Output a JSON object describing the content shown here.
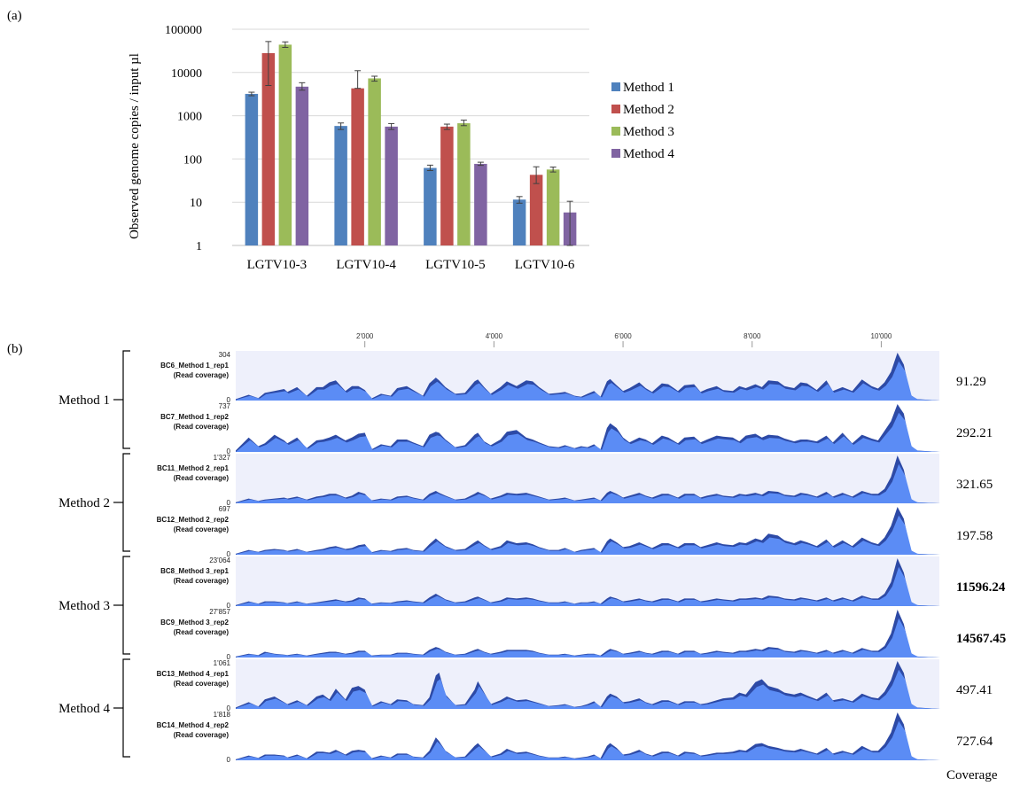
{
  "panel_a": {
    "label": "(a)",
    "chart_data": {
      "type": "bar",
      "ylabel": "Observed genome copies / input µl",
      "yscale": "log",
      "ylim": [
        1,
        100000
      ],
      "yticks": [
        "1",
        "10",
        "100",
        "1000",
        "10000",
        "100000"
      ],
      "categories": [
        "LGTV10-3",
        "LGTV10-4",
        "LGTV10-5",
        "LGTV10-6"
      ],
      "legend_position": "right",
      "grid": true,
      "series": [
        {
          "name": "Method 1",
          "color": "#4F81BD",
          "values": [
            3200,
            580,
            62,
            11.5
          ],
          "err_low": [
            2900,
            480,
            54,
            9.5
          ],
          "err_high": [
            3500,
            680,
            72,
            13.5
          ]
        },
        {
          "name": "Method 2",
          "color": "#C0504D",
          "values": [
            28000,
            4300,
            560,
            43
          ],
          "err_low": [
            5000,
            4300,
            480,
            27
          ],
          "err_high": [
            52000,
            11000,
            640,
            66
          ]
        },
        {
          "name": "Method 3",
          "color": "#9BBB59",
          "values": [
            44000,
            7300,
            670,
            57
          ],
          "err_low": [
            38000,
            6300,
            590,
            50
          ],
          "err_high": [
            51000,
            8200,
            790,
            65
          ]
        },
        {
          "name": "Method 4",
          "color": "#8064A2",
          "values": [
            4700,
            560,
            77,
            5.8
          ],
          "err_low": [
            3900,
            480,
            71,
            0.62
          ],
          "err_high": [
            5800,
            660,
            84,
            10.5
          ]
        }
      ]
    }
  },
  "panel_b": {
    "label": "(b)",
    "chart_data": {
      "type": "area",
      "x_ticks": [
        "2'000",
        "4'000",
        "6'000",
        "8'000",
        "10'000"
      ],
      "x_tick_values": [
        2000,
        4000,
        6000,
        8000,
        10000
      ],
      "x_range": [
        0,
        10900
      ],
      "coverage_label": "Coverage",
      "profile_x": [
        0,
        200,
        350,
        450,
        600,
        750,
        800,
        950,
        1100,
        1250,
        1350,
        1450,
        1550,
        1700,
        1800,
        1900,
        2000,
        2100,
        2250,
        2400,
        2500,
        2650,
        2750,
        2900,
        3000,
        3100,
        3150,
        3250,
        3400,
        3550,
        3700,
        3750,
        3850,
        3950,
        4100,
        4200,
        4350,
        4500,
        4600,
        4700,
        4850,
        5000,
        5100,
        5250,
        5350,
        5450,
        5550,
        5650,
        5750,
        5800,
        5900,
        6000,
        6100,
        6250,
        6350,
        6450,
        6600,
        6700,
        6850,
        6950,
        7100,
        7200,
        7300,
        7450,
        7550,
        7700,
        7800,
        7900,
        8050,
        8150,
        8250,
        8400,
        8500,
        8650,
        8750,
        8850,
        9000,
        9150,
        9250,
        9400,
        9550,
        9700,
        9850,
        9950,
        10050,
        10150,
        10250,
        10350,
        10450,
        10550,
        10900
      ],
      "tracks": [
        {
          "method": "Method 1",
          "label": "BC6_Method 1_rep1",
          "sublabel": "(Read coverage)",
          "ymax": "304",
          "ymin": "0",
          "coverage": "91.29",
          "bold": false,
          "profile": [
            0.03,
            0.12,
            0.05,
            0.16,
            0.2,
            0.24,
            0.18,
            0.28,
            0.1,
            0.28,
            0.28,
            0.38,
            0.42,
            0.2,
            0.3,
            0.3,
            0.22,
            0.04,
            0.14,
            0.1,
            0.26,
            0.3,
            0.22,
            0.1,
            0.36,
            0.48,
            0.42,
            0.28,
            0.14,
            0.16,
            0.4,
            0.44,
            0.28,
            0.14,
            0.28,
            0.4,
            0.3,
            0.42,
            0.4,
            0.28,
            0.14,
            0.16,
            0.18,
            0.1,
            0.08,
            0.14,
            0.2,
            0.08,
            0.4,
            0.45,
            0.32,
            0.2,
            0.26,
            0.38,
            0.26,
            0.18,
            0.36,
            0.34,
            0.2,
            0.32,
            0.34,
            0.18,
            0.24,
            0.3,
            0.22,
            0.2,
            0.3,
            0.26,
            0.34,
            0.28,
            0.42,
            0.4,
            0.3,
            0.26,
            0.38,
            0.36,
            0.22,
            0.42,
            0.2,
            0.28,
            0.2,
            0.44,
            0.3,
            0.25,
            0.38,
            0.6,
            1.0,
            0.75,
            0.12,
            0.03,
            0.0
          ]
        },
        {
          "method": "Method 1",
          "label": "BC7_Method 1_rep2",
          "sublabel": "(Read coverage)",
          "ymax": "737",
          "ymin": "0",
          "coverage": "292.21",
          "bold": false,
          "profile": [
            0.03,
            0.3,
            0.12,
            0.18,
            0.36,
            0.24,
            0.18,
            0.3,
            0.08,
            0.24,
            0.26,
            0.3,
            0.36,
            0.24,
            0.3,
            0.38,
            0.4,
            0.05,
            0.16,
            0.12,
            0.26,
            0.26,
            0.2,
            0.12,
            0.36,
            0.42,
            0.4,
            0.26,
            0.1,
            0.14,
            0.36,
            0.4,
            0.22,
            0.14,
            0.26,
            0.42,
            0.46,
            0.3,
            0.26,
            0.2,
            0.12,
            0.1,
            0.14,
            0.08,
            0.12,
            0.1,
            0.16,
            0.05,
            0.5,
            0.6,
            0.5,
            0.3,
            0.2,
            0.3,
            0.26,
            0.18,
            0.34,
            0.3,
            0.18,
            0.3,
            0.32,
            0.2,
            0.26,
            0.34,
            0.32,
            0.3,
            0.22,
            0.34,
            0.38,
            0.3,
            0.36,
            0.34,
            0.28,
            0.22,
            0.26,
            0.26,
            0.22,
            0.34,
            0.2,
            0.4,
            0.18,
            0.36,
            0.28,
            0.24,
            0.44,
            0.64,
            1.0,
            0.8,
            0.14,
            0.03,
            0.0
          ]
        },
        {
          "method": "Method 2",
          "label": "BC11_Method 2_rep1",
          "sublabel": "(Read coverage)",
          "ymax": "1'327",
          "ymin": "0",
          "coverage": "321.65",
          "bold": false,
          "profile": [
            0.02,
            0.1,
            0.05,
            0.08,
            0.1,
            0.12,
            0.1,
            0.14,
            0.08,
            0.14,
            0.16,
            0.2,
            0.2,
            0.12,
            0.16,
            0.24,
            0.2,
            0.06,
            0.1,
            0.08,
            0.14,
            0.16,
            0.12,
            0.08,
            0.2,
            0.26,
            0.22,
            0.16,
            0.08,
            0.1,
            0.2,
            0.24,
            0.18,
            0.1,
            0.16,
            0.22,
            0.2,
            0.22,
            0.18,
            0.14,
            0.08,
            0.1,
            0.12,
            0.06,
            0.08,
            0.1,
            0.12,
            0.06,
            0.22,
            0.26,
            0.2,
            0.12,
            0.16,
            0.22,
            0.16,
            0.12,
            0.2,
            0.2,
            0.12,
            0.2,
            0.2,
            0.12,
            0.16,
            0.2,
            0.16,
            0.14,
            0.2,
            0.18,
            0.22,
            0.18,
            0.26,
            0.24,
            0.18,
            0.16,
            0.22,
            0.2,
            0.14,
            0.24,
            0.14,
            0.22,
            0.14,
            0.26,
            0.2,
            0.2,
            0.3,
            0.55,
            1.0,
            0.7,
            0.1,
            0.02,
            0.0
          ]
        },
        {
          "method": "Method 2",
          "label": "BC12_Method 2_rep2",
          "sublabel": "(Read coverage)",
          "ymax": "697",
          "ymin": "0",
          "coverage": "197.58",
          "bold": false,
          "profile": [
            0.02,
            0.1,
            0.06,
            0.1,
            0.12,
            0.1,
            0.08,
            0.12,
            0.06,
            0.1,
            0.12,
            0.16,
            0.18,
            0.12,
            0.14,
            0.2,
            0.22,
            0.05,
            0.1,
            0.08,
            0.12,
            0.14,
            0.1,
            0.08,
            0.22,
            0.34,
            0.28,
            0.18,
            0.1,
            0.12,
            0.26,
            0.3,
            0.2,
            0.12,
            0.18,
            0.3,
            0.24,
            0.26,
            0.22,
            0.16,
            0.1,
            0.1,
            0.14,
            0.06,
            0.1,
            0.12,
            0.14,
            0.05,
            0.28,
            0.34,
            0.26,
            0.16,
            0.18,
            0.26,
            0.2,
            0.14,
            0.24,
            0.24,
            0.16,
            0.24,
            0.24,
            0.16,
            0.2,
            0.26,
            0.22,
            0.2,
            0.26,
            0.24,
            0.34,
            0.3,
            0.44,
            0.4,
            0.3,
            0.24,
            0.3,
            0.26,
            0.18,
            0.32,
            0.18,
            0.3,
            0.18,
            0.36,
            0.26,
            0.22,
            0.36,
            0.6,
            1.0,
            0.75,
            0.1,
            0.02,
            0.0
          ]
        },
        {
          "method": "Method 3",
          "label": "BC8_Method 3_rep1",
          "sublabel": "(Read coverage)",
          "ymax": "23'064",
          "ymin": "0",
          "coverage": "11596.24",
          "bold": true,
          "profile": [
            0.02,
            0.1,
            0.05,
            0.1,
            0.1,
            0.08,
            0.06,
            0.1,
            0.05,
            0.08,
            0.1,
            0.12,
            0.14,
            0.1,
            0.12,
            0.18,
            0.16,
            0.05,
            0.08,
            0.07,
            0.1,
            0.12,
            0.1,
            0.08,
            0.18,
            0.26,
            0.22,
            0.14,
            0.08,
            0.1,
            0.18,
            0.2,
            0.14,
            0.08,
            0.12,
            0.18,
            0.16,
            0.18,
            0.16,
            0.12,
            0.08,
            0.08,
            0.1,
            0.05,
            0.08,
            0.08,
            0.1,
            0.05,
            0.16,
            0.2,
            0.16,
            0.1,
            0.12,
            0.16,
            0.12,
            0.1,
            0.16,
            0.16,
            0.1,
            0.16,
            0.16,
            0.1,
            0.12,
            0.16,
            0.14,
            0.12,
            0.16,
            0.16,
            0.18,
            0.16,
            0.22,
            0.2,
            0.16,
            0.14,
            0.18,
            0.16,
            0.12,
            0.18,
            0.12,
            0.18,
            0.12,
            0.22,
            0.16,
            0.16,
            0.26,
            0.5,
            1.0,
            0.7,
            0.1,
            0.02,
            0.0
          ]
        },
        {
          "method": "Method 3",
          "label": "BC9_Method 3_rep2",
          "sublabel": "(Read coverage)",
          "ymax": "27'857",
          "ymin": "0",
          "coverage": "14567.45",
          "bold": true,
          "profile": [
            0.02,
            0.08,
            0.05,
            0.12,
            0.08,
            0.06,
            0.05,
            0.08,
            0.04,
            0.08,
            0.1,
            0.12,
            0.12,
            0.08,
            0.1,
            0.14,
            0.14,
            0.04,
            0.06,
            0.06,
            0.1,
            0.1,
            0.08,
            0.06,
            0.16,
            0.22,
            0.2,
            0.12,
            0.06,
            0.08,
            0.16,
            0.18,
            0.12,
            0.08,
            0.12,
            0.16,
            0.16,
            0.16,
            0.14,
            0.1,
            0.06,
            0.06,
            0.08,
            0.04,
            0.06,
            0.08,
            0.08,
            0.04,
            0.14,
            0.18,
            0.14,
            0.08,
            0.1,
            0.14,
            0.1,
            0.08,
            0.14,
            0.14,
            0.08,
            0.14,
            0.14,
            0.08,
            0.1,
            0.14,
            0.12,
            0.1,
            0.14,
            0.14,
            0.18,
            0.16,
            0.22,
            0.2,
            0.14,
            0.12,
            0.16,
            0.14,
            0.1,
            0.16,
            0.1,
            0.16,
            0.1,
            0.2,
            0.14,
            0.14,
            0.24,
            0.5,
            1.0,
            0.7,
            0.1,
            0.02,
            0.0
          ]
        },
        {
          "method": "Method 4",
          "label": "BC13_Method 4_rep1",
          "sublabel": "(Read coverage)",
          "ymax": "1'061",
          "ymin": "0",
          "coverage": "497.41",
          "bold": false,
          "profile": [
            0.03,
            0.14,
            0.05,
            0.2,
            0.26,
            0.14,
            0.1,
            0.18,
            0.08,
            0.26,
            0.3,
            0.2,
            0.42,
            0.2,
            0.44,
            0.48,
            0.4,
            0.06,
            0.16,
            0.1,
            0.2,
            0.18,
            0.1,
            0.08,
            0.24,
            0.7,
            0.76,
            0.3,
            0.08,
            0.1,
            0.4,
            0.58,
            0.34,
            0.1,
            0.18,
            0.26,
            0.18,
            0.2,
            0.16,
            0.12,
            0.06,
            0.08,
            0.1,
            0.04,
            0.06,
            0.1,
            0.16,
            0.04,
            0.26,
            0.32,
            0.26,
            0.14,
            0.16,
            0.22,
            0.14,
            0.1,
            0.18,
            0.18,
            0.1,
            0.16,
            0.16,
            0.1,
            0.12,
            0.18,
            0.22,
            0.24,
            0.34,
            0.3,
            0.56,
            0.62,
            0.48,
            0.42,
            0.34,
            0.3,
            0.34,
            0.28,
            0.2,
            0.34,
            0.18,
            0.22,
            0.16,
            0.32,
            0.24,
            0.22,
            0.36,
            0.6,
            1.0,
            0.75,
            0.12,
            0.03,
            0.0
          ]
        },
        {
          "method": "Method 4",
          "label": "BC14_Method 4_rep2",
          "sublabel": "(Read coverage)",
          "ymax": "1'818",
          "ymin": "0",
          "coverage": "727.64",
          "bold": false,
          "profile": [
            0.02,
            0.1,
            0.05,
            0.12,
            0.12,
            0.1,
            0.06,
            0.12,
            0.04,
            0.18,
            0.18,
            0.16,
            0.22,
            0.12,
            0.2,
            0.22,
            0.2,
            0.04,
            0.1,
            0.06,
            0.14,
            0.14,
            0.08,
            0.06,
            0.2,
            0.48,
            0.4,
            0.2,
            0.06,
            0.08,
            0.3,
            0.36,
            0.22,
            0.08,
            0.14,
            0.24,
            0.16,
            0.18,
            0.14,
            0.1,
            0.06,
            0.06,
            0.08,
            0.04,
            0.06,
            0.08,
            0.12,
            0.04,
            0.3,
            0.36,
            0.26,
            0.12,
            0.14,
            0.22,
            0.14,
            0.1,
            0.18,
            0.18,
            0.1,
            0.18,
            0.16,
            0.1,
            0.12,
            0.16,
            0.16,
            0.18,
            0.22,
            0.2,
            0.34,
            0.36,
            0.3,
            0.26,
            0.22,
            0.2,
            0.24,
            0.2,
            0.14,
            0.26,
            0.14,
            0.2,
            0.14,
            0.3,
            0.2,
            0.2,
            0.34,
            0.58,
            1.0,
            0.75,
            0.1,
            0.02,
            0.0
          ]
        }
      ],
      "groups": [
        "Method 1",
        "Method 2",
        "Method 3",
        "Method 4"
      ]
    }
  }
}
